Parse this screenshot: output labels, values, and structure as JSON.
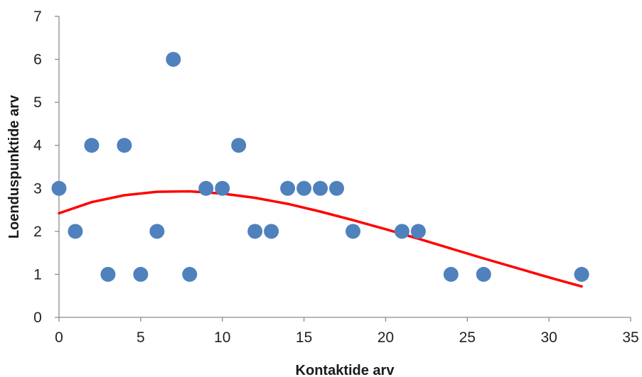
{
  "chart_data": {
    "type": "scatter",
    "title": "",
    "xlabel": "Kontaktide arv",
    "ylabel": "Loenduspunktide arv",
    "xlim": [
      0,
      35
    ],
    "ylim": [
      0,
      7
    ],
    "x_ticks": [
      0,
      5,
      10,
      15,
      20,
      25,
      30,
      35
    ],
    "y_ticks": [
      0,
      1,
      2,
      3,
      4,
      5,
      6,
      7
    ],
    "grid": false,
    "legend": "none",
    "series": [
      {
        "kind": "scatter",
        "color": "#4f81bd",
        "points": [
          {
            "x": 0,
            "y": 3
          },
          {
            "x": 1,
            "y": 2
          },
          {
            "x": 2,
            "y": 4
          },
          {
            "x": 3,
            "y": 1
          },
          {
            "x": 4,
            "y": 4
          },
          {
            "x": 5,
            "y": 1
          },
          {
            "x": 6,
            "y": 2
          },
          {
            "x": 7,
            "y": 6
          },
          {
            "x": 8,
            "y": 1
          },
          {
            "x": 9,
            "y": 3
          },
          {
            "x": 10,
            "y": 3
          },
          {
            "x": 11,
            "y": 4
          },
          {
            "x": 12,
            "y": 2
          },
          {
            "x": 13,
            "y": 2
          },
          {
            "x": 14,
            "y": 3
          },
          {
            "x": 15,
            "y": 3
          },
          {
            "x": 16,
            "y": 3
          },
          {
            "x": 17,
            "y": 3
          },
          {
            "x": 18,
            "y": 2
          },
          {
            "x": 21,
            "y": 2
          },
          {
            "x": 22,
            "y": 2
          },
          {
            "x": 24,
            "y": 1
          },
          {
            "x": 26,
            "y": 1
          },
          {
            "x": 32,
            "y": 1
          }
        ]
      },
      {
        "kind": "trendline",
        "color": "#ff0000",
        "points": [
          {
            "x": 0,
            "y": 2.42
          },
          {
            "x": 2,
            "y": 2.68
          },
          {
            "x": 4,
            "y": 2.84
          },
          {
            "x": 6,
            "y": 2.92
          },
          {
            "x": 8,
            "y": 2.93
          },
          {
            "x": 10,
            "y": 2.88
          },
          {
            "x": 12,
            "y": 2.78
          },
          {
            "x": 14,
            "y": 2.64
          },
          {
            "x": 16,
            "y": 2.46
          },
          {
            "x": 18,
            "y": 2.26
          },
          {
            "x": 20,
            "y": 2.05
          },
          {
            "x": 22,
            "y": 1.83
          },
          {
            "x": 24,
            "y": 1.6
          },
          {
            "x": 26,
            "y": 1.37
          },
          {
            "x": 28,
            "y": 1.15
          },
          {
            "x": 30,
            "y": 0.93
          },
          {
            "x": 32,
            "y": 0.72
          }
        ]
      }
    ]
  }
}
